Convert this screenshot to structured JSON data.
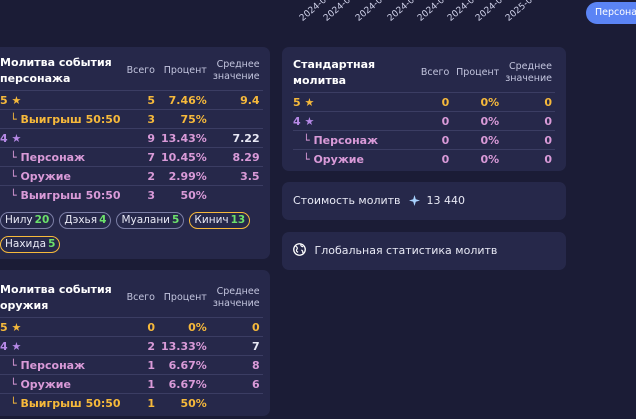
{
  "chart_x_labels": [
    "2024-0",
    "2024-0",
    "2024-0",
    "2024-0",
    "2024-0",
    "2024-0",
    "2024-0",
    "2025-0"
  ],
  "right_button_label": "Персона",
  "character_banner": {
    "title": "Молитва события персонажа",
    "col_total": "Всего",
    "col_percent": "Процент",
    "col_avg": "Среднее значение",
    "rows": [
      {
        "label": "5 ★",
        "total": "5",
        "percent": "7.46%",
        "avg": "9.4"
      },
      {
        "label": "└ Выигрыш 50:50",
        "total": "3",
        "percent": "75%",
        "avg": ""
      },
      {
        "label": "4 ★",
        "total": "9",
        "percent": "13.43%",
        "avg": "7.22"
      },
      {
        "label": "└ Персонаж",
        "total": "7",
        "percent": "10.45%",
        "avg": "8.29"
      },
      {
        "label": "└ Оружие",
        "total": "2",
        "percent": "2.99%",
        "avg": "3.5"
      },
      {
        "label": "└ Выигрыш 50:50",
        "total": "3",
        "percent": "50%",
        "avg": ""
      }
    ],
    "chips": [
      {
        "name": "Нилу",
        "count": "20"
      },
      {
        "name": "Дэхья",
        "count": "4"
      },
      {
        "name": "Муалани",
        "count": "5"
      },
      {
        "name": "Кинич",
        "count": "13"
      },
      {
        "name": "Нахида",
        "count": "5"
      }
    ]
  },
  "weapon_banner": {
    "title": "Молитва события оружия",
    "col_total": "Всего",
    "col_percent": "Процент",
    "col_avg": "Среднее значение",
    "rows": [
      {
        "label": "5 ★",
        "total": "0",
        "percent": "0%",
        "avg": "0"
      },
      {
        "label": "4 ★",
        "total": "2",
        "percent": "13.33%",
        "avg": "7"
      },
      {
        "label": "└ Персонаж",
        "total": "1",
        "percent": "6.67%",
        "avg": "8"
      },
      {
        "label": "└ Оружие",
        "total": "1",
        "percent": "6.67%",
        "avg": "6"
      },
      {
        "label": "└ Выигрыш 50:50",
        "total": "1",
        "percent": "50%",
        "avg": ""
      }
    ]
  },
  "standard_banner": {
    "title": "Стандартная молитва",
    "col_total": "Всего",
    "col_percent": "Процент",
    "col_avg": "Среднее значение",
    "rows": [
      {
        "label": "5 ★",
        "total": "0",
        "percent": "0%",
        "avg": "0"
      },
      {
        "label": "4 ★",
        "total": "0",
        "percent": "0%",
        "avg": "0"
      },
      {
        "label": "└ Персонаж",
        "total": "0",
        "percent": "0%",
        "avg": "0"
      },
      {
        "label": "└ Оружие",
        "total": "0",
        "percent": "0%",
        "avg": "0"
      }
    ]
  },
  "cost": {
    "label": "Стоимость молитв",
    "value": "13 440"
  },
  "global_stats": {
    "label": "Глобальная статистика молитв"
  },
  "colors": {
    "gold": "#f6b93b",
    "purple": "#b689e6",
    "pink": "#d99ad8",
    "green": "#6be16b",
    "accent": "#5b84f5"
  }
}
